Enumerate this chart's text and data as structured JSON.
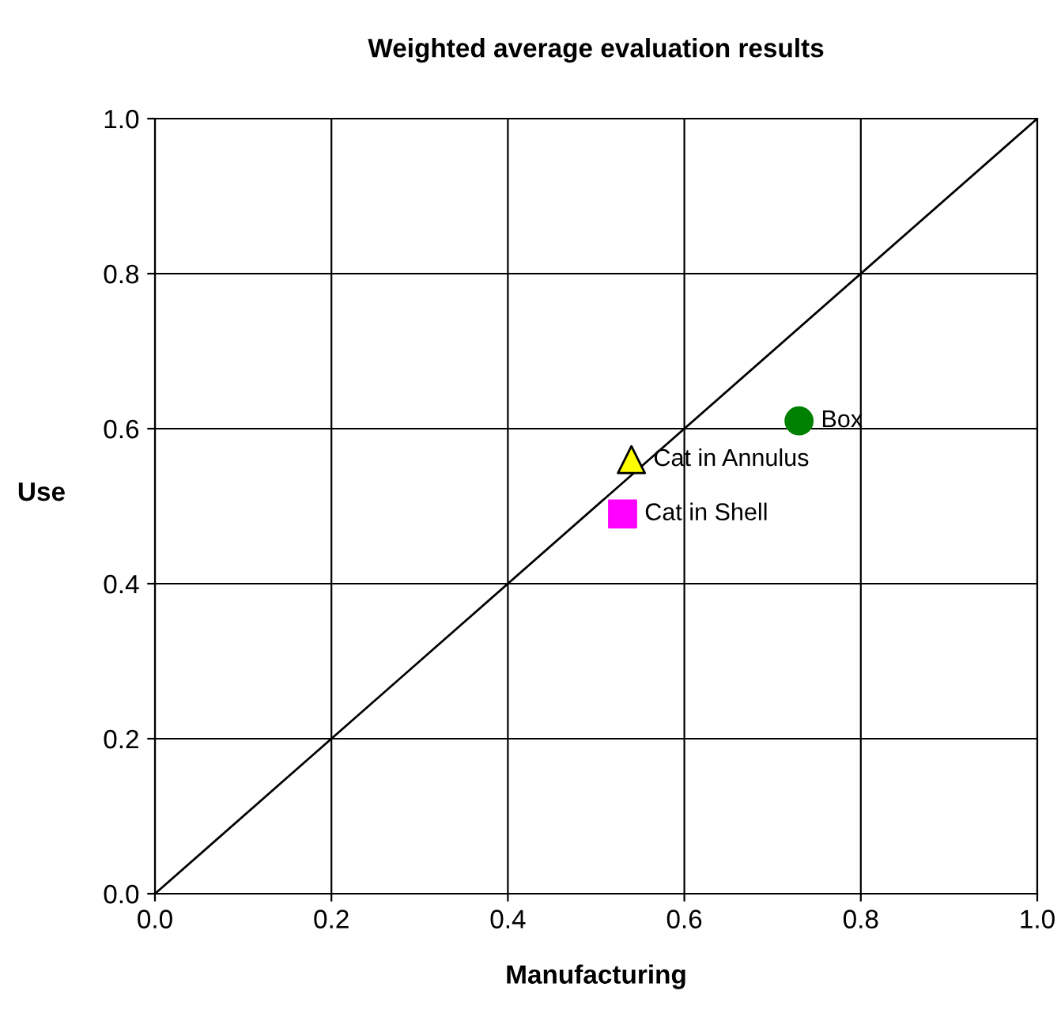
{
  "chart_data": {
    "type": "scatter",
    "title": "Weighted average evaluation results",
    "xlabel": "Manufacturing",
    "ylabel": "Use",
    "series": [
      {
        "type": "line",
        "color": "#000000",
        "x": [
          0.0,
          1.0
        ],
        "values": [
          0.0,
          1.0
        ],
        "marker": "none"
      },
      {
        "name": "Box",
        "color": "#008000",
        "x": [
          0.73
        ],
        "values": [
          0.61
        ],
        "marker": "circle"
      },
      {
        "name": "Cat in Annulus",
        "color": "#ffff00",
        "x": [
          0.54
        ],
        "values": [
          0.56
        ],
        "marker": "triangle"
      },
      {
        "name": "Cat in Shell",
        "color": "#ff00ff",
        "x": [
          0.53
        ],
        "values": [
          0.49
        ],
        "marker": "square"
      }
    ],
    "xlim": [
      0.0,
      1.0
    ],
    "ylim": [
      0.0,
      1.0
    ],
    "xticks": [
      {
        "value": 0,
        "label": "0.0"
      },
      {
        "value": 0.2,
        "label": "0.2"
      },
      {
        "value": 0.4,
        "label": "0.4"
      },
      {
        "value": 0.6,
        "label": "0.6"
      },
      {
        "value": 0.8,
        "label": "0.8"
      },
      {
        "value": 1.0,
        "label": "1.0"
      }
    ],
    "yticks": [
      {
        "value": 0,
        "label": "0.0"
      },
      {
        "value": 0.2,
        "label": "0.2"
      },
      {
        "value": 0.4,
        "label": "0.4"
      },
      {
        "value": 0.6,
        "label": "0.6"
      },
      {
        "value": 0.8,
        "label": "0.8"
      },
      {
        "value": 1.0,
        "label": "1.0"
      }
    ],
    "grid": true,
    "legend": false
  }
}
